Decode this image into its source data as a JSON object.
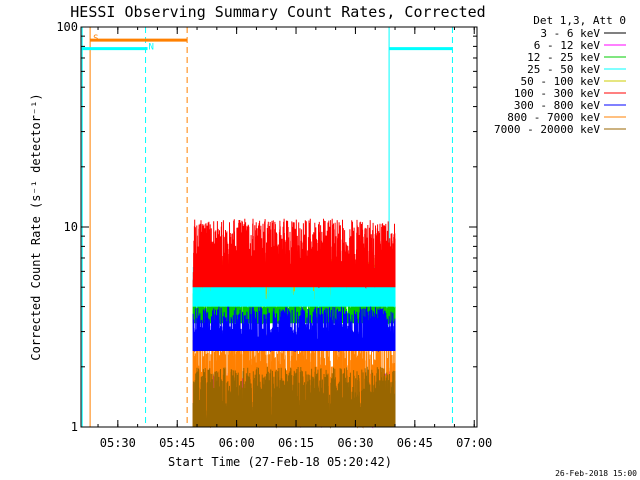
{
  "chart_data": {
    "type": "line",
    "title": "HESSI Observing Summary Count Rates, Corrected",
    "xlabel": "Start Time (27-Feb-18 05:20:42)",
    "ylabel": "Corrected Count Rate (s⁻¹ detector⁻¹)",
    "yscale": "log",
    "ylim": [
      1,
      100
    ],
    "xlim": [
      "05:20:42",
      "07:00:42"
    ],
    "x_ticks": [
      "05:30",
      "05:45",
      "06:00",
      "06:15",
      "06:30",
      "06:45",
      "07:00"
    ],
    "y_ticks": [
      "1",
      "10",
      "100"
    ],
    "legend_header": "Det 1,3, Att 0",
    "legend_position": "right",
    "series": [
      {
        "name": "3 - 6 keV",
        "color": "#000000",
        "level_range": [
          0,
          0
        ]
      },
      {
        "name": "6 - 12 keV",
        "color": "#ff00ff",
        "level_range": [
          1.0,
          1.9
        ]
      },
      {
        "name": "12 - 25 keV",
        "color": "#00cc00",
        "level_range": [
          3.3,
          5.0
        ]
      },
      {
        "name": "25 - 50 keV",
        "color": "#00ffff",
        "level_range": [
          4.0,
          6.5
        ]
      },
      {
        "name": "50 - 100 keV",
        "color": "#cccc00",
        "level_range": [
          4.0,
          7.0
        ]
      },
      {
        "name": "100 - 300 keV",
        "color": "#ff0000",
        "level_range": [
          5.0,
          11.0
        ]
      },
      {
        "name": "300 - 800 keV",
        "color": "#0000ff",
        "level_range": [
          2.4,
          4.0
        ]
      },
      {
        "name": "800 - 7000 keV",
        "color": "#ff8000",
        "level_range": [
          1.0,
          3.0
        ]
      },
      {
        "name": "7000 - 20000 keV",
        "color": "#996600",
        "level_range": [
          1.0,
          2.0
        ]
      }
    ],
    "data_interval": [
      "05:49:00",
      "06:40:00"
    ],
    "flags": [
      {
        "label": "",
        "color": "#00ffff",
        "interval": [
          "05:20:42",
          "05:37:00"
        ],
        "level": 78
      },
      {
        "label": "N",
        "color": "#00ffff",
        "interval": [
          "05:37:00",
          "05:37:30"
        ],
        "level": 78
      },
      {
        "label": "S",
        "color": "#ff8000",
        "interval": [
          "05:23:00",
          "05:47:30"
        ],
        "level": 86
      },
      {
        "label": "",
        "color": "#00ffff",
        "interval": [
          "06:38:30",
          "06:54:30"
        ],
        "level": 78
      }
    ],
    "markers": [
      {
        "time": "05:21:00",
        "color": "#00ffff",
        "style": "solid"
      },
      {
        "time": "05:23:00",
        "color": "#ff8000",
        "style": "solid"
      },
      {
        "time": "05:37:00",
        "color": "#00ffff",
        "style": "dashed"
      },
      {
        "time": "05:47:30",
        "color": "#ff8000",
        "style": "dashed"
      },
      {
        "time": "06:38:30",
        "color": "#00ffff",
        "style": "solid"
      },
      {
        "time": "06:54:30",
        "color": "#00ffff",
        "style": "dashed"
      }
    ]
  },
  "footer": {
    "stamp": "26-Feb-2018 15:00"
  }
}
